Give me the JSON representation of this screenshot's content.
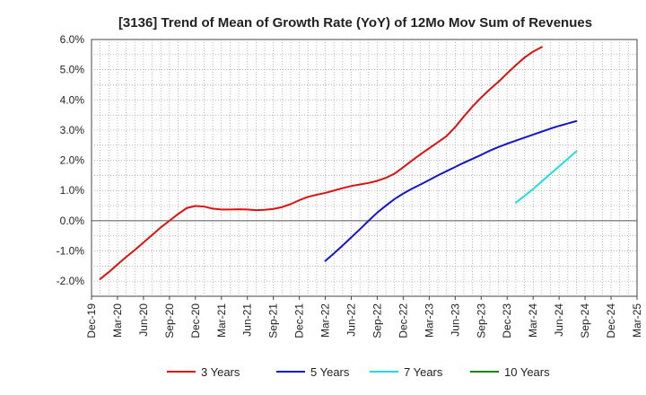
{
  "chart_data": {
    "type": "line",
    "title": "[3136]  Trend of Mean of Growth Rate (YoY) of 12Mo Mov Sum of Revenues",
    "xlabel": "",
    "ylabel": "",
    "ylim": [
      -2.5,
      6.0
    ],
    "y_ticks": [
      -2.0,
      -1.0,
      0.0,
      1.0,
      2.0,
      3.0,
      4.0,
      5.0,
      6.0
    ],
    "y_tick_labels": [
      "-2.0%",
      "-1.0%",
      "0.0%",
      "1.0%",
      "2.0%",
      "3.0%",
      "4.0%",
      "5.0%",
      "6.0%"
    ],
    "x_tick_labels": [
      "Dec-19",
      "Mar-20",
      "Jun-20",
      "Sep-20",
      "Dec-20",
      "Mar-21",
      "Jun-21",
      "Sep-21",
      "Dec-21",
      "Mar-22",
      "Jun-22",
      "Sep-22",
      "Dec-22",
      "Mar-23",
      "Jun-23",
      "Sep-23",
      "Dec-23",
      "Mar-24",
      "Jun-24",
      "Sep-24",
      "Dec-24",
      "Mar-25"
    ],
    "grid": true,
    "legend_position": "bottom",
    "series": [
      {
        "name": "3 Years",
        "color": "#dd1111",
        "x_start_index": 1,
        "values": [
          -1.93,
          -1.7,
          -1.45,
          -1.2,
          -0.97,
          -0.72,
          -0.47,
          -0.22,
          0.0,
          0.22,
          0.42,
          0.49,
          0.47,
          0.4,
          0.37,
          0.37,
          0.38,
          0.37,
          0.35,
          0.36,
          0.39,
          0.45,
          0.55,
          0.68,
          0.79,
          0.86,
          0.92,
          1.0,
          1.08,
          1.15,
          1.2,
          1.25,
          1.32,
          1.42,
          1.56,
          1.77,
          1.99,
          2.2,
          2.4,
          2.6,
          2.8,
          3.1,
          3.45,
          3.78,
          4.08,
          4.35,
          4.6,
          4.88,
          5.15,
          5.4,
          5.6,
          5.75
        ]
      },
      {
        "name": "5 Years",
        "color": "#1515cc",
        "x_start_index": 27,
        "values": [
          -1.33,
          -1.08,
          -0.82,
          -0.55,
          -0.28,
          0.0,
          0.27,
          0.5,
          0.72,
          0.9,
          1.06,
          1.2,
          1.35,
          1.5,
          1.64,
          1.78,
          1.92,
          2.05,
          2.18,
          2.32,
          2.44,
          2.55,
          2.65,
          2.75,
          2.85,
          2.95,
          3.05,
          3.14,
          3.22,
          3.3
        ]
      },
      {
        "name": "7 Years",
        "color": "#22dddd",
        "x_start_index": 49,
        "values": [
          0.6,
          0.82,
          1.05,
          1.3,
          1.55,
          1.8,
          2.05,
          2.3
        ]
      },
      {
        "name": "10 Years",
        "color": "#118811",
        "x_start_index": 0,
        "values": []
      }
    ]
  }
}
